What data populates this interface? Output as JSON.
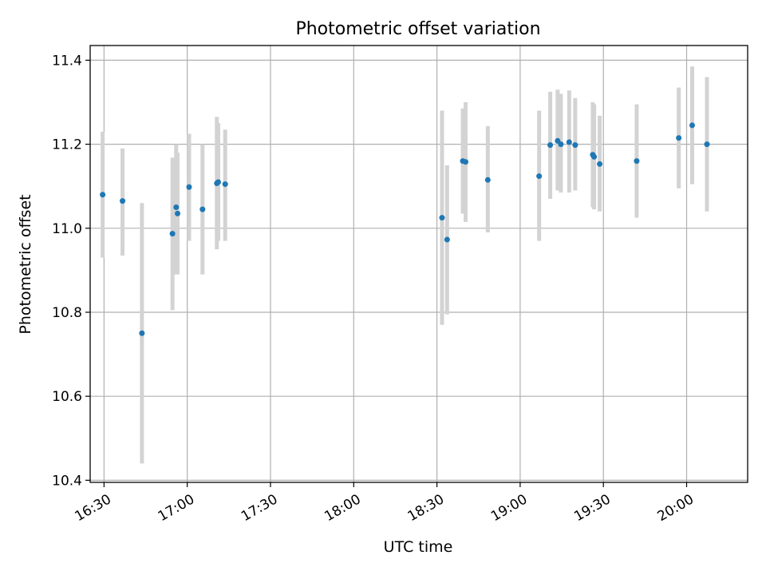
{
  "chart_data": {
    "type": "scatter",
    "title": "Photometric offset variation",
    "xlabel": "UTC time",
    "ylabel": "Photometric offset",
    "x_ticks": [
      "16:30",
      "17:00",
      "17:30",
      "18:00",
      "18:30",
      "19:00",
      "19:30",
      "20:00"
    ],
    "y_ticks": [
      "10.4",
      "10.6",
      "10.8",
      "11.0",
      "11.2",
      "11.4"
    ],
    "xlim": [
      "16:25",
      "20:22"
    ],
    "ylim": [
      10.395,
      11.435
    ],
    "grid": true,
    "errorbar_color": "#d3d3d3",
    "point_color": "#1f77b4",
    "points": [
      {
        "time": "16:29:30",
        "y": 11.08,
        "ylow": 10.93,
        "yhigh": 11.23
      },
      {
        "time": "16:36:40",
        "y": 11.065,
        "ylow": 10.935,
        "yhigh": 11.19
      },
      {
        "time": "16:43:40",
        "y": 10.75,
        "ylow": 10.44,
        "yhigh": 11.06
      },
      {
        "time": "16:54:40",
        "y": 10.987,
        "ylow": 10.805,
        "yhigh": 11.168
      },
      {
        "time": "16:56:00",
        "y": 11.05,
        "ylow": 10.89,
        "yhigh": 11.2
      },
      {
        "time": "16:56:30",
        "y": 11.035,
        "ylow": 10.89,
        "yhigh": 11.18
      },
      {
        "time": "17:00:40",
        "y": 11.098,
        "ylow": 10.97,
        "yhigh": 11.225
      },
      {
        "time": "17:05:30",
        "y": 11.045,
        "ylow": 10.89,
        "yhigh": 11.2
      },
      {
        "time": "17:10:40",
        "y": 11.107,
        "ylow": 10.95,
        "yhigh": 11.265
      },
      {
        "time": "17:11:10",
        "y": 11.11,
        "ylow": 10.97,
        "yhigh": 11.25
      },
      {
        "time": "17:13:40",
        "y": 11.105,
        "ylow": 10.97,
        "yhigh": 11.235
      },
      {
        "time": "18:31:50",
        "y": 11.025,
        "ylow": 10.77,
        "yhigh": 11.28
      },
      {
        "time": "18:33:40",
        "y": 10.973,
        "ylow": 10.795,
        "yhigh": 11.15
      },
      {
        "time": "18:39:20",
        "y": 11.16,
        "ylow": 11.035,
        "yhigh": 11.285
      },
      {
        "time": "18:40:20",
        "y": 11.158,
        "ylow": 11.015,
        "yhigh": 11.3
      },
      {
        "time": "18:48:20",
        "y": 11.115,
        "ylow": 10.99,
        "yhigh": 11.243
      },
      {
        "time": "19:06:50",
        "y": 11.124,
        "ylow": 10.97,
        "yhigh": 11.28
      },
      {
        "time": "19:10:50",
        "y": 11.198,
        "ylow": 11.07,
        "yhigh": 11.325
      },
      {
        "time": "19:13:30",
        "y": 11.208,
        "ylow": 11.09,
        "yhigh": 11.33
      },
      {
        "time": "19:14:40",
        "y": 11.2,
        "ylow": 11.085,
        "yhigh": 11.32
      },
      {
        "time": "19:17:40",
        "y": 11.205,
        "ylow": 11.085,
        "yhigh": 11.328
      },
      {
        "time": "19:19:50",
        "y": 11.198,
        "ylow": 11.09,
        "yhigh": 11.31
      },
      {
        "time": "19:26:10",
        "y": 11.175,
        "ylow": 11.05,
        "yhigh": 11.3
      },
      {
        "time": "19:26:40",
        "y": 11.17,
        "ylow": 11.045,
        "yhigh": 11.295
      },
      {
        "time": "19:28:40",
        "y": 11.153,
        "ylow": 11.04,
        "yhigh": 11.268
      },
      {
        "time": "19:42:00",
        "y": 11.16,
        "ylow": 11.025,
        "yhigh": 11.295
      },
      {
        "time": "19:57:10",
        "y": 11.215,
        "ylow": 11.095,
        "yhigh": 11.335
      },
      {
        "time": "20:02:00",
        "y": 11.245,
        "ylow": 11.105,
        "yhigh": 11.385
      },
      {
        "time": "20:07:20",
        "y": 11.2,
        "ylow": 11.04,
        "yhigh": 11.36
      }
    ]
  }
}
